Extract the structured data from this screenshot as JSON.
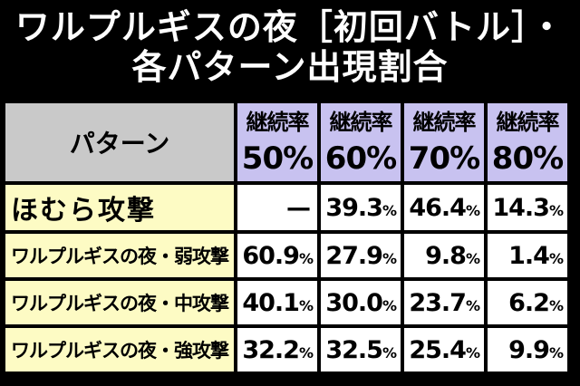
{
  "title": {
    "line1": "ワルプルギスの夜［初回バトル］・",
    "line2": "各パターン出現割合"
  },
  "table": {
    "pattern_header": "パターン",
    "rate_headers": [
      {
        "label": "継続率",
        "value": "50%"
      },
      {
        "label": "継続率",
        "value": "60%"
      },
      {
        "label": "継続率",
        "value": "70%"
      },
      {
        "label": "継続率",
        "value": "80%"
      }
    ],
    "rows": [
      {
        "label": "ほむら攻撃",
        "cells": [
          {
            "n": "—",
            "u": ""
          },
          {
            "n": "39.3",
            "u": "%"
          },
          {
            "n": "46.4",
            "u": "%"
          },
          {
            "n": "14.3",
            "u": "%"
          }
        ]
      },
      {
        "label": "ワルプルギスの夜・弱攻撃",
        "cells": [
          {
            "n": "60.9",
            "u": "%"
          },
          {
            "n": "27.9",
            "u": "%"
          },
          {
            "n": "9.8",
            "u": "%"
          },
          {
            "n": "1.4",
            "u": "%"
          }
        ]
      },
      {
        "label": "ワルプルギスの夜・中攻撃",
        "cells": [
          {
            "n": "40.1",
            "u": "%"
          },
          {
            "n": "30.0",
            "u": "%"
          },
          {
            "n": "23.7",
            "u": "%"
          },
          {
            "n": "6.2",
            "u": "%"
          }
        ]
      },
      {
        "label": "ワルプルギスの夜・強攻撃",
        "cells": [
          {
            "n": "32.2",
            "u": "%"
          },
          {
            "n": "32.5",
            "u": "%"
          },
          {
            "n": "25.4",
            "u": "%"
          },
          {
            "n": "9.9",
            "u": "%"
          }
        ]
      }
    ]
  },
  "colors": {
    "background": "#000000",
    "pattern_header_bg": "#c9c9c9",
    "rate_header_bg": "#c8c2f0",
    "row_label_bg": "#fdfbc4",
    "value_bg": "#ffffff"
  }
}
